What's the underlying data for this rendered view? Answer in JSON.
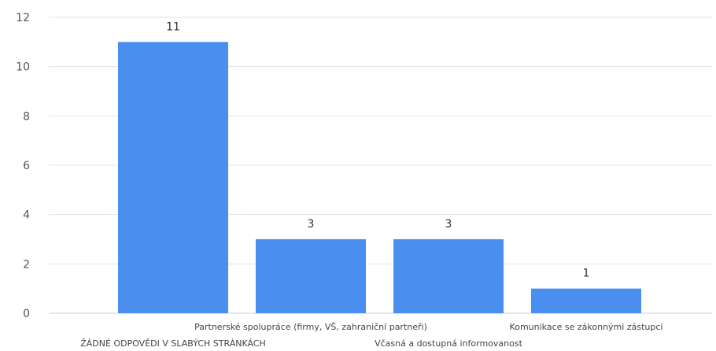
{
  "chart_data": {
    "type": "bar",
    "title": "",
    "xlabel": "",
    "ylabel": "",
    "categories": [
      "ŽÁDNÉ ODPOVĚDI V SLABÝCH STRÁNKÁCH",
      "Partnerské spolupráce (firmy, VŠ, zahraniční partneři)",
      "Včasná a dostupná informovanost",
      "Komunikace se zákonnými zástupci"
    ],
    "values": [
      11,
      3,
      3,
      1
    ],
    "data_labels": [
      "11",
      "3",
      "3",
      "1"
    ],
    "ylim": [
      0,
      12
    ],
    "yticks": [
      0,
      2,
      4,
      6,
      8,
      10,
      12
    ],
    "grid": true,
    "legend": "none",
    "bar_color": "#4a8ef0"
  }
}
